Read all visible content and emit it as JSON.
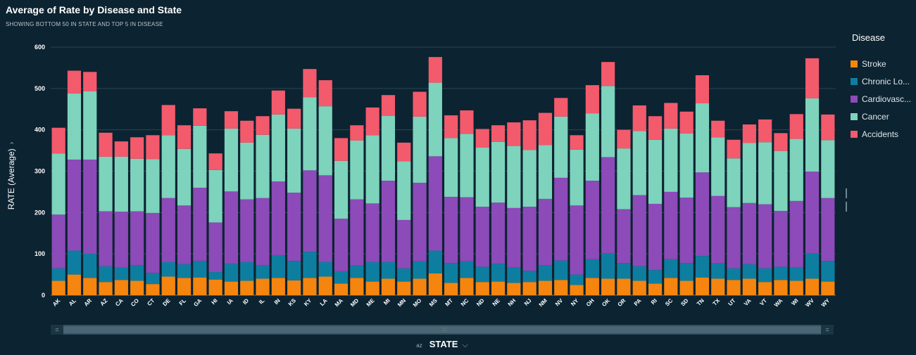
{
  "header": {
    "title": "Average of Rate by Disease and State",
    "subtitle": "SHOWING BOTTOM 50 IN STATE AND TOP 5 IN DISEASE"
  },
  "axes": {
    "y_label": "RATE (Average)",
    "x_label": "STATE",
    "sort_icon_text": "az"
  },
  "legend": {
    "title": "Disease",
    "items": [
      {
        "label": "Stroke",
        "color": "#f5850e"
      },
      {
        "label": "Chronic Lo...",
        "color": "#0e7ea0"
      },
      {
        "label": "Cardiovasc...",
        "color": "#8c4bb8"
      },
      {
        "label": "Cancer",
        "color": "#7dd3bc"
      },
      {
        "label": "Accidents",
        "color": "#f35a6c"
      }
    ]
  },
  "colors": {
    "background": "#0c2331",
    "gridline": "#2a4452"
  },
  "chart_data": {
    "type": "bar",
    "stacked": true,
    "title": "Average of Rate by Disease and State",
    "subtitle": "SHOWING BOTTOM 50 IN STATE AND TOP 5 IN DISEASE",
    "xlabel": "STATE",
    "ylabel": "RATE (Average)",
    "ylim": [
      0,
      600
    ],
    "yticks": [
      0,
      100,
      200,
      300,
      400,
      500,
      600
    ],
    "grid": true,
    "legend_position": "right",
    "categories": [
      "AK",
      "AL",
      "AR",
      "AZ",
      "CA",
      "CO",
      "CT",
      "DE",
      "FL",
      "GA",
      "HI",
      "IA",
      "ID",
      "IL",
      "IN",
      "KS",
      "KY",
      "LA",
      "MA",
      "MD",
      "ME",
      "MI",
      "MN",
      "MO",
      "MS",
      "MT",
      "NC",
      "ND",
      "NE",
      "NH",
      "NJ",
      "NM",
      "NV",
      "NY",
      "OH",
      "OK",
      "OR",
      "PA",
      "RI",
      "SC",
      "SD",
      "TN",
      "TX",
      "UT",
      "VA",
      "VT",
      "WA",
      "WI",
      "WV",
      "WY"
    ],
    "series": [
      {
        "name": "Stroke",
        "color": "#f5850e",
        "values": [
          35,
          50,
          42,
          32,
          37,
          35,
          27,
          45,
          42,
          43,
          38,
          33,
          35,
          40,
          42,
          36,
          42,
          45,
          28,
          42,
          33,
          40,
          33,
          40,
          53,
          30,
          42,
          32,
          33,
          30,
          32,
          35,
          37,
          25,
          42,
          40,
          40,
          35,
          28,
          42,
          35,
          43,
          40,
          37,
          40,
          32,
          37,
          35,
          40,
          33
        ]
      },
      {
        "name": "Chronic Lo...",
        "color": "#0e7ea0",
        "values": [
          30,
          58,
          58,
          38,
          30,
          38,
          27,
          35,
          33,
          40,
          18,
          43,
          45,
          33,
          55,
          47,
          63,
          35,
          30,
          30,
          47,
          40,
          32,
          42,
          55,
          48,
          40,
          37,
          43,
          38,
          27,
          38,
          47,
          25,
          45,
          62,
          38,
          35,
          33,
          45,
          43,
          52,
          37,
          28,
          35,
          33,
          32,
          33,
          62,
          50
        ]
      },
      {
        "name": "Cardiovasc...",
        "color": "#8c4bb8",
        "values": [
          130,
          220,
          228,
          133,
          135,
          130,
          145,
          155,
          142,
          177,
          120,
          175,
          152,
          162,
          178,
          165,
          197,
          210,
          127,
          160,
          142,
          197,
          117,
          190,
          228,
          160,
          155,
          145,
          148,
          143,
          155,
          160,
          200,
          167,
          190,
          232,
          130,
          172,
          160,
          163,
          158,
          202,
          163,
          148,
          148,
          155,
          135,
          160,
          197,
          152
        ]
      },
      {
        "name": "Cancer",
        "color": "#7dd3bc",
        "values": [
          148,
          160,
          165,
          132,
          133,
          127,
          130,
          152,
          137,
          150,
          127,
          152,
          137,
          153,
          162,
          155,
          177,
          167,
          140,
          142,
          165,
          157,
          142,
          160,
          178,
          142,
          153,
          143,
          147,
          150,
          137,
          130,
          148,
          135,
          163,
          172,
          147,
          155,
          155,
          153,
          155,
          167,
          142,
          118,
          145,
          150,
          145,
          150,
          177,
          140
        ]
      },
      {
        "name": "Accidents",
        "color": "#f35a6c",
        "values": [
          62,
          55,
          47,
          58,
          37,
          52,
          58,
          73,
          57,
          42,
          40,
          42,
          53,
          45,
          58,
          48,
          68,
          63,
          55,
          37,
          67,
          50,
          45,
          60,
          62,
          55,
          57,
          45,
          40,
          57,
          72,
          78,
          45,
          35,
          68,
          58,
          45,
          62,
          57,
          62,
          53,
          68,
          40,
          45,
          45,
          55,
          43,
          60,
          97,
          62
        ]
      }
    ]
  }
}
